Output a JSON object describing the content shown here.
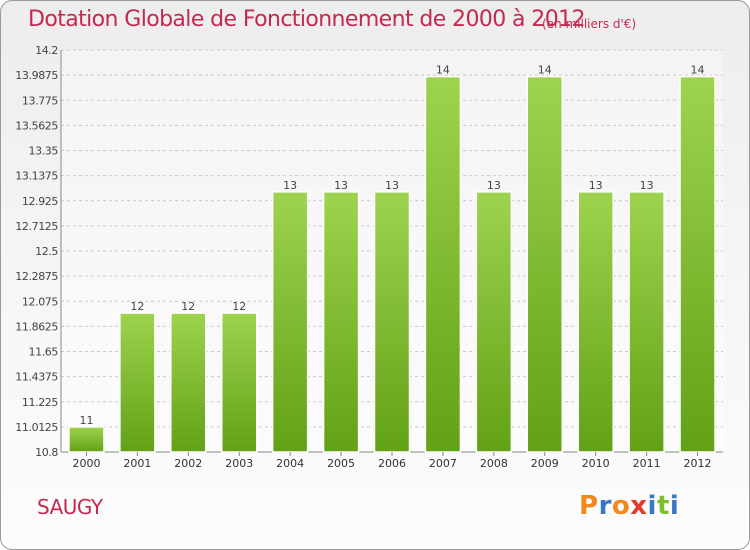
{
  "header": {
    "title": "Dotation Globale de Fonctionnement de 2000 à 2012",
    "subtitle": "(en milliers d'€)"
  },
  "footer": {
    "commune": "SAUGY",
    "logo_letters": [
      "P",
      "r",
      "o",
      "x",
      "i",
      "t",
      "i"
    ],
    "logo_colors": [
      "#f08a1c",
      "#3a76c4",
      "#f08a1c",
      "#e23a2c",
      "#3a76c4",
      "#7fbf2a",
      "#3a76c4"
    ]
  },
  "colors": {
    "bar_light": "#9ed34e",
    "bar_dark": "#62a116",
    "grid": "#c8c8c8",
    "title": "#c4294e"
  },
  "chart_data": {
    "type": "bar",
    "title": "Dotation Globale de Fonctionnement de 2000 à 2012",
    "ylabel": "en milliers d'€",
    "categories": [
      "2000",
      "2001",
      "2002",
      "2003",
      "2004",
      "2005",
      "2006",
      "2007",
      "2008",
      "2009",
      "2010",
      "2011",
      "2012"
    ],
    "values": [
      11,
      12,
      12,
      12,
      13,
      13,
      13,
      14,
      13,
      14,
      13,
      13,
      14
    ],
    "plotted_values": [
      11.0125,
      11.975,
      11.975,
      11.975,
      13.0,
      13.0,
      13.0,
      13.975,
      13.0,
      13.975,
      13.0,
      13.0,
      13.975
    ],
    "ylim": [
      10.8,
      14.2
    ],
    "yticks": [
      10.8,
      11.0125,
      11.225,
      11.4375,
      11.65,
      11.8625,
      12.075,
      12.2875,
      12.5,
      12.7125,
      12.925,
      13.1375,
      13.35,
      13.5625,
      13.775,
      13.9875,
      14.2
    ],
    "ytick_labels": [
      "10.8",
      "11.0125",
      "11.225",
      "11.4375",
      "11.65",
      "11.8625",
      "12.075",
      "12.2875",
      "12.5",
      "12.7125",
      "12.925",
      "13.1375",
      "13.35",
      "13.5625",
      "13.775",
      "13.9875",
      "14.2"
    ],
    "grid": true
  }
}
